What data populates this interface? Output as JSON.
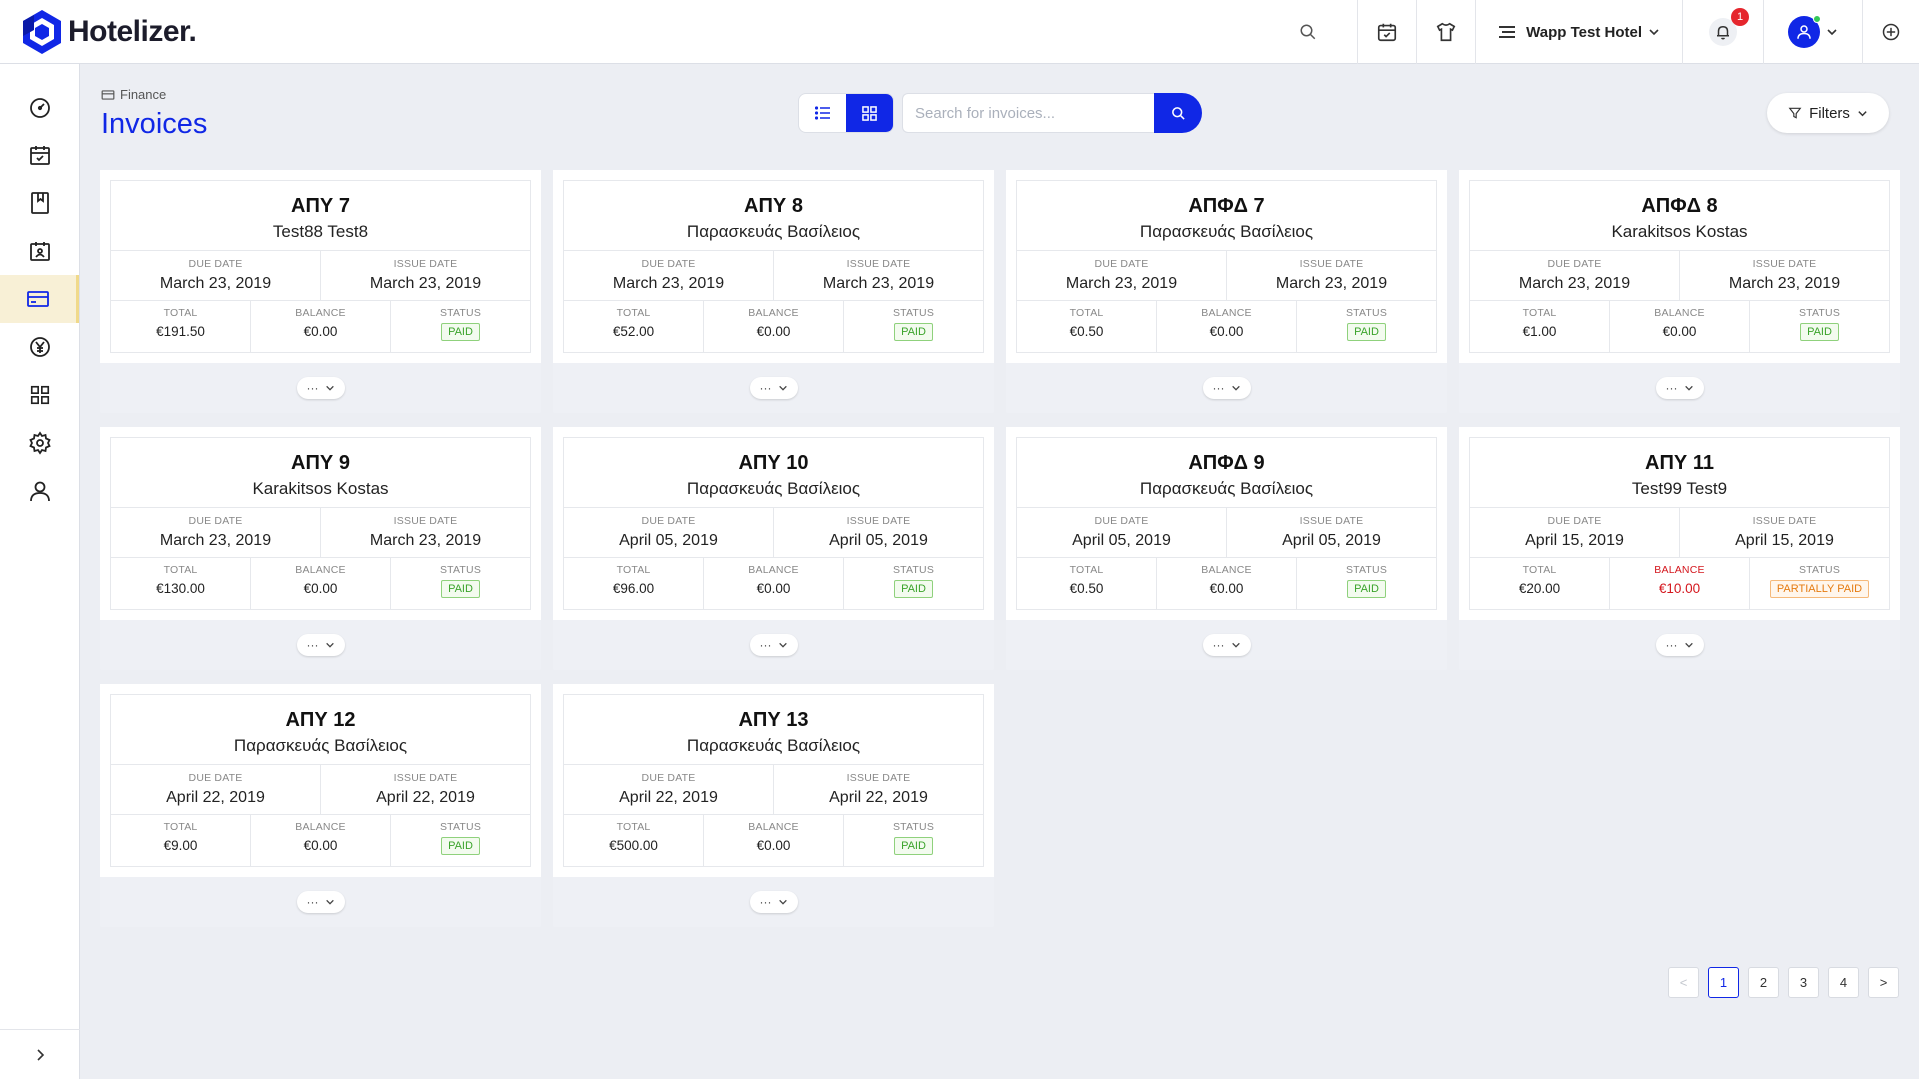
{
  "app": {
    "name": "Hotelizer."
  },
  "header": {
    "hotel_name": "Wapp Test Hotel",
    "notifications_count": "1"
  },
  "sidebar": {
    "items": [
      {
        "name": "dashboard-icon",
        "active": false
      },
      {
        "name": "bookings-calendar-icon",
        "active": false
      },
      {
        "name": "book-icon",
        "active": false
      },
      {
        "name": "guest-card-icon",
        "active": false
      },
      {
        "name": "finance-card-icon",
        "active": true
      },
      {
        "name": "yen-coin-icon",
        "active": false
      },
      {
        "name": "apps-grid-icon",
        "active": false
      },
      {
        "name": "settings-gear-icon",
        "active": false
      },
      {
        "name": "user-icon",
        "active": false
      }
    ]
  },
  "page": {
    "breadcrumb": "Finance",
    "title": "Invoices",
    "search_placeholder": "Search for invoices...",
    "filters_label": "Filters"
  },
  "labels": {
    "due_date": "DUE DATE",
    "issue_date": "ISSUE DATE",
    "total": "TOTAL",
    "balance": "BALANCE",
    "status": "STATUS",
    "more": "···"
  },
  "invoices": [
    {
      "number": "ΑΠΥ 7",
      "guest": "Test88 Test8",
      "due_date": "March 23, 2019",
      "issue_date": "March 23, 2019",
      "total": "€191.50",
      "balance": "€0.00",
      "status": "PAID"
    },
    {
      "number": "ΑΠΥ 8",
      "guest": "Παρασκευάς Βασίλειος",
      "due_date": "March 23, 2019",
      "issue_date": "March 23, 2019",
      "total": "€52.00",
      "balance": "€0.00",
      "status": "PAID"
    },
    {
      "number": "ΑΠΦΔ 7",
      "guest": "Παρασκευάς Βασίλειος",
      "due_date": "March 23, 2019",
      "issue_date": "March 23, 2019",
      "total": "€0.50",
      "balance": "€0.00",
      "status": "PAID"
    },
    {
      "number": "ΑΠΦΔ 8",
      "guest": "Karakitsos Kostas",
      "due_date": "March 23, 2019",
      "issue_date": "March 23, 2019",
      "total": "€1.00",
      "balance": "€0.00",
      "status": "PAID"
    },
    {
      "number": "ΑΠΥ 9",
      "guest": "Karakitsos Kostas",
      "due_date": "March 23, 2019",
      "issue_date": "March 23, 2019",
      "total": "€130.00",
      "balance": "€0.00",
      "status": "PAID"
    },
    {
      "number": "ΑΠΥ 10",
      "guest": "Παρασκευάς Βασίλειος",
      "due_date": "April 05, 2019",
      "issue_date": "April 05, 2019",
      "total": "€96.00",
      "balance": "€0.00",
      "status": "PAID"
    },
    {
      "number": "ΑΠΦΔ 9",
      "guest": "Παρασκευάς Βασίλειος",
      "due_date": "April 05, 2019",
      "issue_date": "April 05, 2019",
      "total": "€0.50",
      "balance": "€0.00",
      "status": "PAID"
    },
    {
      "number": "ΑΠΥ 11",
      "guest": "Test99 Test9",
      "due_date": "April 15, 2019",
      "issue_date": "April 15, 2019",
      "total": "€20.00",
      "balance": "€10.00",
      "status": "PARTIALLY PAID",
      "balance_due": true
    },
    {
      "number": "ΑΠΥ 12",
      "guest": "Παρασκευάς Βασίλειος",
      "due_date": "April 22, 2019",
      "issue_date": "April 22, 2019",
      "total": "€9.00",
      "balance": "€0.00",
      "status": "PAID"
    },
    {
      "number": "ΑΠΥ 13",
      "guest": "Παρασκευάς Βασίλειος",
      "due_date": "April 22, 2019",
      "issue_date": "April 22, 2019",
      "total": "€500.00",
      "balance": "€0.00",
      "status": "PAID"
    }
  ],
  "pagination": {
    "prev": "<",
    "next": ">",
    "pages": [
      "1",
      "2",
      "3",
      "4"
    ],
    "current": "1"
  },
  "colors": {
    "accent": "#1027e6",
    "paid": "#3aa32a",
    "partial": "#e57b10",
    "danger": "#d4161d"
  }
}
